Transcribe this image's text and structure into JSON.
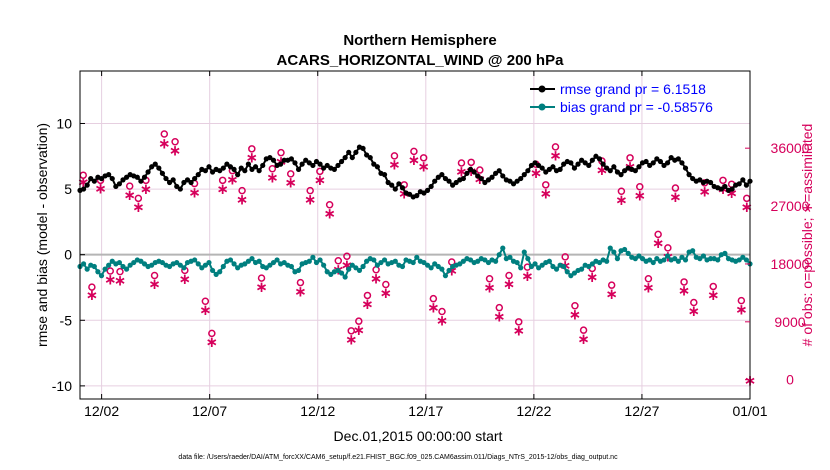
{
  "chart_data": {
    "type": "line",
    "title": "Northern Hemisphere",
    "subtitle": "ACARS_HORIZONTAL_WIND @ 200 hPa",
    "xlabel": "Dec.01,2015 00:00:00 start",
    "ylabel_left": "rmse and bias (model - observation)",
    "ylabel_right": "# of obs: o=possible; ∗=assimilated",
    "footnote": "data file: /Users/raeder/DAI/ATM_forcXX/CAM6_setup/f.e21.FHIST_BGC.f09_025.CAM6assim.011/Diags_NTrS_2015-12/obs_diag_output.nc",
    "x_ticks": [
      "12/02",
      "12/07",
      "12/12",
      "12/17",
      "12/22",
      "12/27",
      "01/01"
    ],
    "x_tick_days": [
      1,
      6,
      11,
      16,
      21,
      26,
      31
    ],
    "xlim": [
      0,
      31
    ],
    "ylim_left": [
      -11,
      14
    ],
    "yticks_left": [
      "10",
      "5",
      "0",
      "-5",
      "-10"
    ],
    "ytick_left_values": [
      10,
      5,
      0,
      -5,
      -10
    ],
    "ylim_right": [
      -3000,
      48000
    ],
    "yticks_right": [
      "36000",
      "27000",
      "18000",
      "9000",
      "0"
    ],
    "ytick_right_values": [
      36000,
      27000,
      18000,
      9000,
      0
    ],
    "grid": true,
    "legend_position": "top-right",
    "legend": [
      {
        "label": "rmse grand pr = 6.1518",
        "color": "#000000"
      },
      {
        "label": "bias grand pr = -0.58576",
        "color": "#007f7f"
      }
    ],
    "colors": {
      "rmse": "#000000",
      "bias": "#007f7f",
      "obs": "#d6005b",
      "right_axis": "#d6005b",
      "legend_text": "#0000ff",
      "zero_line": "#b5b5b5",
      "grid": "#e6cfe0"
    },
    "series": [
      {
        "name": "rmse",
        "values": [
          4.9,
          5.0,
          5.3,
          5.8,
          5.6,
          5.9,
          5.8,
          6.0,
          6.1,
          5.8,
          5.2,
          5.4,
          5.7,
          5.9,
          6.1,
          6.0,
          5.9,
          5.6,
          5.9,
          6.3,
          6.7,
          6.9,
          6.6,
          6.2,
          5.8,
          5.5,
          5.7,
          5.2,
          5.0,
          5.5,
          5.7,
          5.5,
          5.8,
          6.1,
          6.5,
          6.4,
          6.7,
          6.3,
          6.5,
          6.4,
          6.6,
          6.9,
          6.7,
          6.5,
          6.1,
          6.6,
          6.4,
          6.9,
          6.5,
          6.7,
          6.4,
          6.8,
          7.3,
          7.4,
          7.2,
          6.8,
          6.9,
          7.2,
          7.2,
          7.3,
          7.0,
          6.5,
          6.9,
          7.2,
          7.0,
          6.8,
          7.1,
          6.9,
          6.6,
          6.8,
          6.6,
          6.5,
          6.8,
          7.1,
          7.4,
          7.8,
          7.4,
          7.8,
          8.2,
          8.1,
          7.6,
          7.4,
          6.9,
          6.7,
          6.2,
          6.1,
          5.5,
          5.3,
          5.0,
          5.4,
          5.1,
          4.7,
          4.6,
          4.4,
          4.5,
          4.8,
          4.7,
          4.9,
          5.2,
          5.6,
          5.9,
          6.1,
          5.8,
          5.6,
          5.3,
          5.5,
          5.7,
          5.8,
          6.2,
          6.5,
          6.3,
          6.0,
          5.8,
          5.5,
          5.7,
          5.9,
          6.2,
          6.4,
          6.0,
          5.7,
          5.6,
          5.4,
          5.6,
          5.8,
          6.1,
          6.4,
          6.8,
          7.0,
          6.8,
          6.6,
          6.3,
          6.5,
          6.7,
          6.4,
          6.5,
          6.9,
          7.1,
          7.0,
          6.6,
          6.9,
          7.2,
          7.0,
          6.8,
          7.2,
          7.5,
          7.3,
          6.9,
          6.6,
          6.4,
          6.7,
          6.3,
          6.1,
          6.4,
          6.6,
          6.5,
          6.4,
          6.7,
          7.0,
          7.1,
          6.8,
          7.0,
          7.3,
          7.1,
          6.8,
          7.0,
          7.4,
          7.2,
          7.3,
          7.0,
          6.6,
          6.1,
          5.8,
          5.6,
          5.7,
          5.5,
          5.6,
          5.5,
          5.2,
          5.1,
          5.0,
          5.2,
          4.9,
          5.0,
          5.3,
          5.4,
          5.7,
          5.3,
          5.6
        ]
      },
      {
        "name": "bias",
        "values": [
          -0.9,
          -0.7,
          -1.1,
          -0.8,
          -0.9,
          -1.3,
          -1.6,
          -1.1,
          -0.8,
          -0.5,
          -0.7,
          -0.6,
          -0.9,
          -1.1,
          -0.8,
          -0.6,
          -0.4,
          -0.5,
          -0.7,
          -0.9,
          -0.8,
          -0.6,
          -0.5,
          -0.6,
          -0.8,
          -0.9,
          -0.7,
          -0.6,
          -0.8,
          -1.0,
          -0.6,
          -0.5,
          -0.4,
          -0.7,
          -1.0,
          -0.8,
          -0.6,
          -1.2,
          -1.5,
          -1.3,
          -0.9,
          -0.5,
          -0.4,
          -0.7,
          -1.0,
          -0.8,
          -0.7,
          -0.5,
          -0.3,
          -0.6,
          -0.5,
          -0.9,
          -1.0,
          -0.8,
          -0.6,
          -0.4,
          -0.7,
          -0.6,
          -0.8,
          -0.9,
          -1.3,
          -1.2,
          -0.7,
          -0.6,
          -0.5,
          -0.2,
          -0.6,
          -0.4,
          -0.8,
          -1.3,
          -1.5,
          -1.3,
          -1.2,
          -1.4,
          -1.7,
          -1.1,
          -0.8,
          -1.0,
          -1.2,
          -0.9,
          -0.5,
          -0.3,
          -0.4,
          -0.8,
          -0.6,
          -0.4,
          -0.7,
          -0.6,
          -0.5,
          -0.8,
          -0.9,
          -0.4,
          -0.5,
          -0.6,
          -0.2,
          -0.5,
          -0.6,
          -0.8,
          -1.0,
          -0.7,
          -0.9,
          -1.1,
          -1.6,
          -1.2,
          -0.9,
          -0.8,
          -0.7,
          -0.5,
          -0.3,
          -0.4,
          -0.6,
          -0.5,
          -0.3,
          -0.4,
          -0.6,
          -0.4,
          -0.5,
          0.0,
          0.5,
          -0.3,
          -0.2,
          -0.5,
          -0.6,
          -1.0,
          0.2,
          -0.3,
          -0.9,
          -0.7,
          -1.0,
          -0.8,
          -0.6,
          -0.5,
          -0.9,
          -1.1,
          -0.8,
          -0.9,
          -1.3,
          -1.6,
          -1.4,
          -1.2,
          -1.1,
          -0.8,
          -0.9,
          -0.7,
          -0.5,
          -0.6,
          -0.4,
          -0.5,
          0.5,
          0.2,
          -0.3,
          0.3,
          0.4,
          0.1,
          -0.2,
          -0.3,
          -0.1,
          -0.3,
          -0.5,
          -0.4,
          -0.6,
          -0.3,
          -0.5,
          -0.4,
          -0.1,
          -0.4,
          -0.3,
          -0.5,
          -0.2,
          -0.4,
          0.2,
          0.3,
          -0.2,
          -0.3,
          -0.1,
          -0.4,
          -0.3,
          -0.3,
          -0.4,
          0.0,
          0.1,
          -0.3,
          -0.4,
          -0.5,
          -0.4,
          -0.2,
          -0.4,
          -0.7
        ]
      },
      {
        "name": "obs_possible",
        "points": [
          [
            0.15,
            31800
          ],
          [
            0.55,
            14400
          ],
          [
            0.95,
            31000
          ],
          [
            1.4,
            16900
          ],
          [
            1.85,
            16800
          ],
          [
            2.3,
            30100
          ],
          [
            2.7,
            28200
          ],
          [
            3.05,
            31000
          ],
          [
            3.45,
            16200
          ],
          [
            3.9,
            38200
          ],
          [
            4.4,
            37000
          ],
          [
            4.85,
            17000
          ],
          [
            5.3,
            30500
          ],
          [
            5.8,
            12200
          ],
          [
            6.1,
            7200
          ],
          [
            6.6,
            31000
          ],
          [
            7.05,
            32500
          ],
          [
            7.5,
            29400
          ],
          [
            7.95,
            35900
          ],
          [
            8.4,
            15800
          ],
          [
            8.9,
            32800
          ],
          [
            9.3,
            35300
          ],
          [
            9.75,
            32000
          ],
          [
            10.2,
            15100
          ],
          [
            10.65,
            29400
          ],
          [
            11.1,
            32400
          ],
          [
            11.55,
            27200
          ],
          [
            11.95,
            18500
          ],
          [
            12.35,
            19200
          ],
          [
            12.55,
            7600
          ],
          [
            12.9,
            9100
          ],
          [
            13.3,
            13100
          ],
          [
            13.7,
            17100
          ],
          [
            14.15,
            14800
          ],
          [
            14.55,
            34800
          ],
          [
            15.0,
            30300
          ],
          [
            15.45,
            35500
          ],
          [
            15.9,
            34500
          ],
          [
            16.35,
            12600
          ],
          [
            16.75,
            10600
          ],
          [
            17.2,
            18300
          ],
          [
            17.65,
            33700
          ],
          [
            18.1,
            33800
          ],
          [
            18.5,
            32600
          ],
          [
            18.95,
            15700
          ],
          [
            19.4,
            11200
          ],
          [
            19.85,
            16200
          ],
          [
            20.3,
            9000
          ],
          [
            20.7,
            17500
          ],
          [
            21.1,
            33500
          ],
          [
            21.55,
            30300
          ],
          [
            22.0,
            36200
          ],
          [
            22.45,
            19100
          ],
          [
            22.9,
            11500
          ],
          [
            23.3,
            7700
          ],
          [
            23.7,
            17300
          ],
          [
            24.15,
            34000
          ],
          [
            24.6,
            14700
          ],
          [
            25.05,
            29300
          ],
          [
            25.45,
            34500
          ],
          [
            25.9,
            30000
          ],
          [
            26.3,
            15700
          ],
          [
            26.75,
            22600
          ],
          [
            27.2,
            20500
          ],
          [
            27.55,
            29800
          ],
          [
            27.95,
            15200
          ],
          [
            28.4,
            12000
          ],
          [
            28.9,
            30600
          ],
          [
            29.3,
            14500
          ],
          [
            29.75,
            31000
          ],
          [
            30.15,
            30400
          ],
          [
            30.6,
            12300
          ],
          [
            30.85,
            28200
          ]
        ]
      },
      {
        "name": "obs_assimilated",
        "points": [
          [
            0.15,
            30900
          ],
          [
            0.55,
            13300
          ],
          [
            0.95,
            29900
          ],
          [
            1.4,
            15700
          ],
          [
            1.85,
            15600
          ],
          [
            2.3,
            28900
          ],
          [
            2.7,
            27000
          ],
          [
            3.05,
            29800
          ],
          [
            3.45,
            15000
          ],
          [
            3.9,
            36900
          ],
          [
            4.4,
            35800
          ],
          [
            4.85,
            15800
          ],
          [
            5.3,
            29300
          ],
          [
            5.8,
            11000
          ],
          [
            6.1,
            6000
          ],
          [
            6.6,
            29800
          ],
          [
            7.05,
            31300
          ],
          [
            7.5,
            28200
          ],
          [
            7.95,
            34700
          ],
          [
            8.4,
            14600
          ],
          [
            8.9,
            31600
          ],
          [
            9.3,
            34100
          ],
          [
            9.75,
            30800
          ],
          [
            10.2,
            13900
          ],
          [
            10.65,
            28200
          ],
          [
            11.1,
            31200
          ],
          [
            11.55,
            26000
          ],
          [
            11.95,
            17300
          ],
          [
            12.35,
            18000
          ],
          [
            12.55,
            6400
          ],
          [
            12.9,
            7900
          ],
          [
            13.3,
            11900
          ],
          [
            13.7,
            15900
          ],
          [
            14.15,
            13600
          ],
          [
            14.55,
            33600
          ],
          [
            15.0,
            29100
          ],
          [
            15.45,
            34300
          ],
          [
            15.9,
            33300
          ],
          [
            16.35,
            11400
          ],
          [
            16.75,
            9400
          ],
          [
            17.2,
            17100
          ],
          [
            17.65,
            32500
          ],
          [
            18.1,
            32600
          ],
          [
            18.5,
            31400
          ],
          [
            18.95,
            14500
          ],
          [
            19.4,
            10000
          ],
          [
            19.85,
            15000
          ],
          [
            20.3,
            7800
          ],
          [
            20.7,
            16300
          ],
          [
            21.1,
            32300
          ],
          [
            21.55,
            29100
          ],
          [
            22.0,
            35000
          ],
          [
            22.45,
            17900
          ],
          [
            22.9,
            10300
          ],
          [
            23.3,
            6500
          ],
          [
            23.7,
            16100
          ],
          [
            24.15,
            32800
          ],
          [
            24.6,
            13500
          ],
          [
            25.05,
            28100
          ],
          [
            25.45,
            33300
          ],
          [
            25.9,
            28800
          ],
          [
            26.3,
            14500
          ],
          [
            26.75,
            21400
          ],
          [
            27.2,
            19300
          ],
          [
            27.55,
            28600
          ],
          [
            27.95,
            14000
          ],
          [
            28.4,
            10800
          ],
          [
            28.9,
            29400
          ],
          [
            29.3,
            13300
          ],
          [
            29.75,
            29800
          ],
          [
            30.15,
            29200
          ],
          [
            30.6,
            11100
          ],
          [
            30.85,
            27000
          ],
          [
            31.0,
            0
          ]
        ]
      }
    ]
  }
}
